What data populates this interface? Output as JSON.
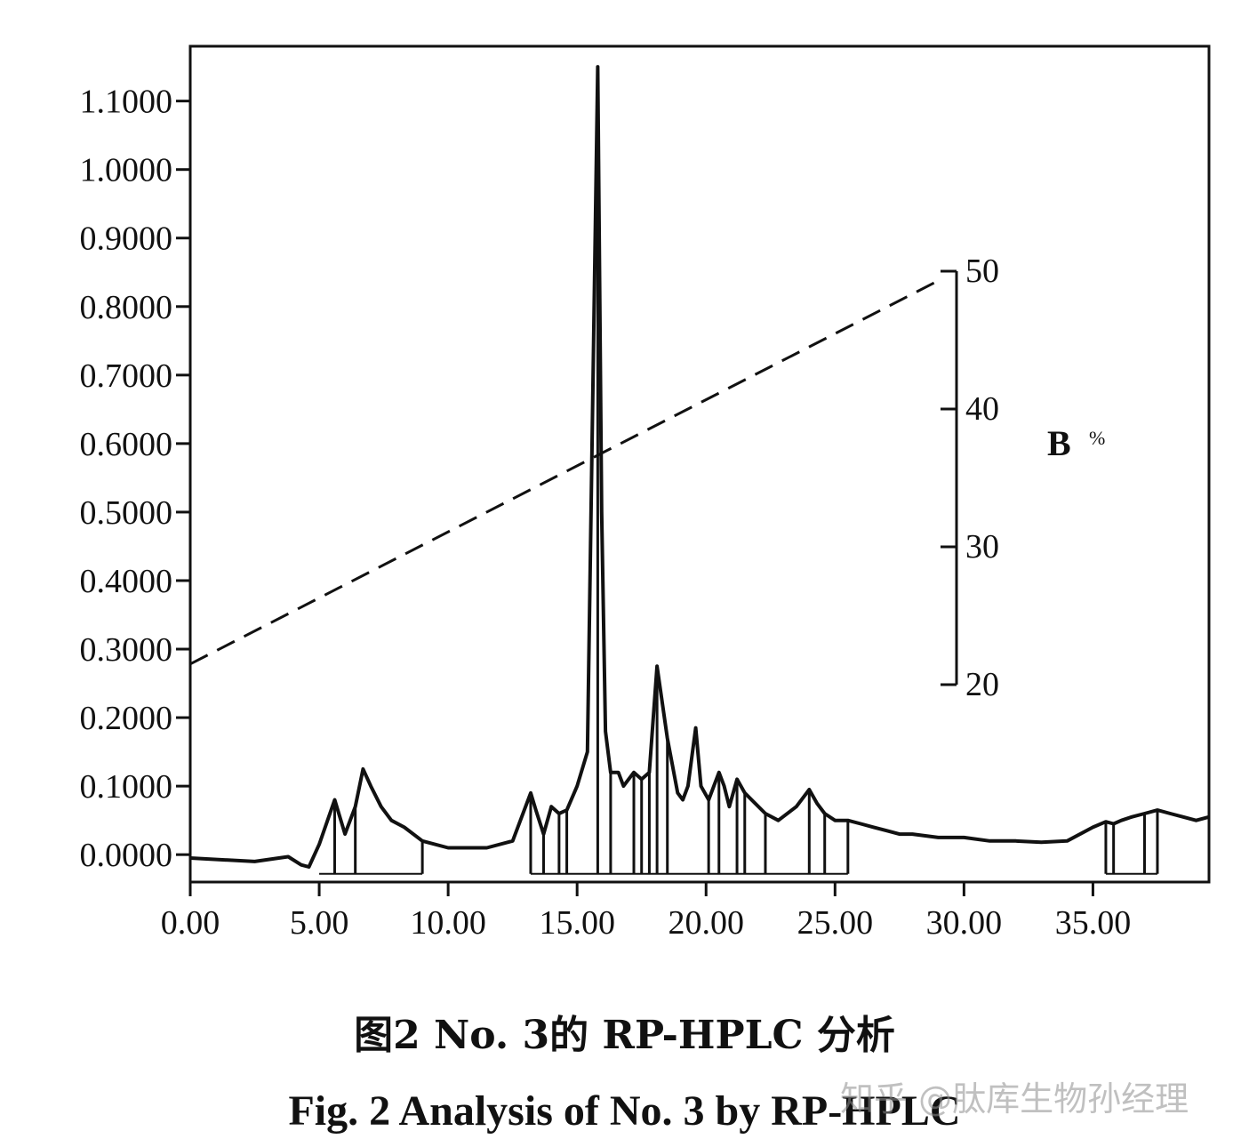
{
  "chart_data": {
    "type": "line",
    "title": "",
    "xlabel": "",
    "ylabel": "",
    "xlim": [
      0,
      39.5
    ],
    "ylim": [
      -0.04,
      1.18
    ],
    "x_ticks": [
      0,
      5,
      10,
      15,
      20,
      25,
      30,
      35
    ],
    "x_tick_labels": [
      "0.00",
      "5.00",
      "10.00",
      "15.00",
      "20.00",
      "25.00",
      "30.00",
      "35.00"
    ],
    "y_ticks": [
      0,
      0.1,
      0.2,
      0.3,
      0.4,
      0.5,
      0.6,
      0.7,
      0.8,
      0.9,
      1.0,
      1.1
    ],
    "y_tick_labels": [
      "0.0000",
      "0.1000",
      "0.2000",
      "0.3000",
      "0.4000",
      "0.5000",
      "0.6000",
      "0.7000",
      "0.8000",
      "0.9000",
      "1.0000",
      "1.1000"
    ],
    "right_axis": {
      "label": "B",
      "unit": "%",
      "ylim": [
        20,
        50
      ],
      "ticks": [
        20,
        30,
        40,
        50
      ],
      "tick_labels": [
        "20",
        "30",
        "40",
        "50"
      ]
    },
    "series": [
      {
        "style": "solid",
        "axis": "left",
        "x": [
          0,
          2.5,
          3.8,
          4.3,
          4.6,
          5.0,
          5.6,
          6.0,
          6.4,
          6.7,
          7.0,
          7.4,
          7.8,
          8.3,
          9.0,
          10.0,
          11.5,
          12.5,
          13.2,
          13.4,
          13.7,
          14.0,
          14.3,
          14.6,
          15.0,
          15.4,
          15.8,
          15.95,
          16.1,
          16.3,
          16.6,
          16.8,
          17.2,
          17.5,
          17.8,
          18.1,
          18.5,
          18.9,
          19.1,
          19.3,
          19.6,
          19.8,
          20.1,
          20.5,
          20.7,
          20.9,
          21.2,
          21.5,
          21.9,
          22.3,
          22.8,
          23.5,
          24.0,
          24.3,
          24.6,
          25.0,
          25.5,
          26.0,
          26.5,
          27.0,
          27.5,
          28.0,
          29.0,
          30.0,
          31.0,
          32.0,
          33.0,
          34.0,
          35.0,
          35.5,
          35.8,
          36.1,
          36.5,
          37.0,
          37.5,
          38.0,
          38.5,
          39.0,
          39.5
        ],
        "y": [
          -0.005,
          -0.01,
          -0.003,
          -0.015,
          -0.018,
          0.015,
          0.08,
          0.03,
          0.07,
          0.125,
          0.1,
          0.07,
          0.05,
          0.04,
          0.02,
          0.01,
          0.01,
          0.02,
          0.09,
          0.065,
          0.03,
          0.07,
          0.06,
          0.065,
          0.1,
          0.15,
          1.15,
          0.5,
          0.18,
          0.12,
          0.12,
          0.1,
          0.12,
          0.11,
          0.12,
          0.275,
          0.17,
          0.09,
          0.08,
          0.1,
          0.185,
          0.1,
          0.08,
          0.12,
          0.1,
          0.07,
          0.11,
          0.09,
          0.075,
          0.06,
          0.05,
          0.07,
          0.095,
          0.075,
          0.06,
          0.05,
          0.05,
          0.045,
          0.04,
          0.035,
          0.03,
          0.03,
          0.025,
          0.025,
          0.02,
          0.02,
          0.018,
          0.02,
          0.04,
          0.048,
          0.045,
          0.05,
          0.055,
          0.06,
          0.065,
          0.06,
          0.055,
          0.05,
          0.055
        ]
      },
      {
        "style": "dashed",
        "axis": "right",
        "x": [
          0,
          29.2
        ],
        "y": [
          21.5,
          49.5
        ]
      }
    ]
  },
  "caption": {
    "cn": "图2  No. 3的 RP-HPLC 分析",
    "en": "Fig. 2  Analysis of No. 3 by RP-HPLC"
  },
  "watermark": "知乎 @肽库生物孙经理"
}
